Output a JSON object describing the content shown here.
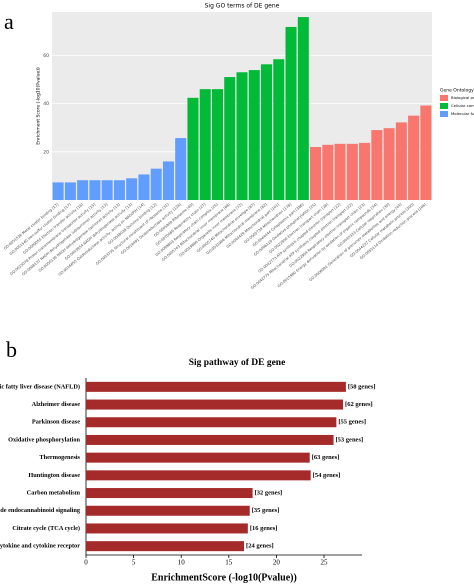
{
  "chart_data": [
    {
      "type": "bar",
      "panel_label": "a",
      "title": "Sig GO terms of DE gene",
      "ylabel": "Enrichment Score (-log10(Pvalue))",
      "ylim": [
        0,
        78
      ],
      "yticks": [
        20,
        40,
        60
      ],
      "legend_title": "Gene Ontology",
      "legend": "right",
      "series": [
        {
          "name": "Molecular function",
          "color": "#619cff",
          "categories": [
            "GO:0051536 Metal cluster binding [17]",
            "GO:0051540 Iron-sulfur cluster binding [17]",
            "GO:0009055 Electron transfer activity [16]",
            "GO:0015078 Proton transmembrane transporter activity [15]",
            "GO:0008137 NADH dehydrogenase (ubiquinone) activity [13]",
            "GO:0050136 NADH dehydrogenase (quinone) activity [13]",
            "GO:0003954 NADH dehydrogenase activity [13]",
            "GO:0016655 Oxidoreductase activity, acting on NAD(P)H [14]",
            "GO:0048038 Quinone binding [12]",
            "GO:0003735 Structural constituent of ribosome [31]",
            "GO:0016491 Oxidoreductase activity [126]"
          ],
          "values": [
            7.3,
            7.3,
            8.2,
            8.2,
            8.2,
            8.2,
            9,
            10.6,
            13,
            16,
            25.7
          ]
        },
        {
          "name": "Cellular component",
          "color": "#00ba38",
          "categories": [
            "GO:0005840 Ribosome [40]",
            "GO:0070469 Respiratory chain [27]",
            "GO:0098803 Respiratory chain complex [25]",
            "GO:0005743 Mitochondrial inner membrane [68]",
            "GO:0019866 Organelle inner membrane [72]",
            "GO:0005740 Mitochondrial envelope [87]",
            "GO:0031966 Mitochondrial membrane [82]",
            "GO:0044429 Mitochondrial part [101]",
            "GO:0005739 Mitochondrion [178]",
            "GO:0044444 Cytoplasmic part [386]"
          ],
          "values": [
            42.4,
            46,
            46,
            51,
            53,
            53.9,
            56.3,
            58.4,
            71.8,
            75.9
          ]
        },
        {
          "name": "Biological process",
          "color": "#f8766d",
          "categories": [
            "GO:0006119 Oxidative phosphorylation [25]",
            "GO:0022900 Electron transport chain [26]",
            "GO:0042773 ATP synthesis coupled electron transport [22]",
            "GO:0042775 Mitochondrial ATP synthesis coupled electron transport [22]",
            "GO:0022904 Respiratory electron transport chain [23]",
            "GO:0015980 Energy derivation by oxidation of organic compounds [34]",
            "GO:0045333 Cellular respiration [30]",
            "GO:0006091 Generation of precursor metabolites and energy [44]",
            "GO:0044237 Cellular metabolic process [300]",
            "GO:0055114 Oxidation-reduction process [106]"
          ],
          "values": [
            22,
            22.9,
            23.3,
            23.3,
            23.7,
            29,
            29.8,
            32.2,
            35,
            39.2
          ]
        }
      ]
    },
    {
      "type": "barh",
      "panel_label": "b",
      "title": "Sig pathway of DE gene",
      "xlabel": "EnrichmentScore (-log10(Pvalue))",
      "color": "#a52a2a",
      "xlim": [
        0,
        29
      ],
      "xticks": [
        0,
        5,
        10,
        15,
        20,
        25
      ],
      "categories": [
        "Non-alcoholic fatty liver disease (NAFLD)",
        "Alzheimer disease",
        "Parkinson disease",
        "Oxidative phosphorylation",
        "Thermogenesis",
        "Huntington disease",
        "Carbon metabolism",
        "Retrograde endocannabinoid signaling",
        "Citrate cycle (TCA cycle)",
        "Viral protein interaction with cytokine and cytokine receptor"
      ],
      "values": [
        27.3,
        27,
        26.3,
        26,
        23.5,
        23.6,
        17.5,
        17.2,
        17,
        16.6
      ],
      "annotations": [
        "[58 genes]",
        "[62 genes]",
        "[55 genes]",
        "[53 genes]",
        "[63 genes]",
        "[54 genes]",
        "[32 genes]",
        "[35 genes]",
        "[16 genes]",
        "[24 genes]"
      ]
    }
  ]
}
